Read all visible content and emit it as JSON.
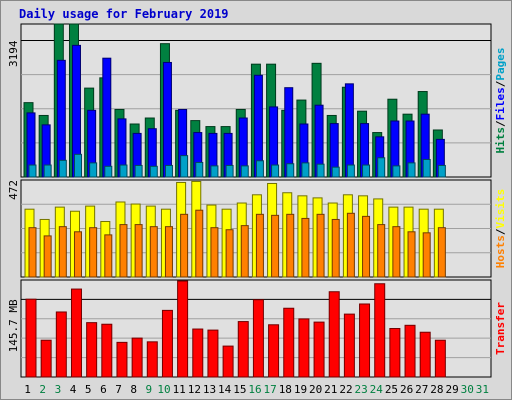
{
  "title": "Daily usage for February 2019",
  "chart_data": [
    {
      "type": "bar",
      "panel": "hits-files-pages",
      "right_label_parts": [
        {
          "text": "Hits",
          "color": "#008040"
        },
        {
          "text": "/",
          "color": "#000000"
        },
        {
          "text": "Files",
          "color": "#0000ff"
        },
        {
          "text": "/",
          "color": "#000000"
        },
        {
          "text": "Pages",
          "color": "#00a0c8"
        }
      ],
      "y_tick_label": "3194",
      "y_tick_value": 3194,
      "ylim": [
        0,
        3580
      ],
      "categories": [
        "1",
        "2",
        "3",
        "4",
        "5",
        "6",
        "7",
        "8",
        "9",
        "10",
        "11",
        "12",
        "13",
        "14",
        "15",
        "16",
        "17",
        "18",
        "19",
        "20",
        "21",
        "22",
        "23",
        "24",
        "25",
        "26",
        "27",
        "28",
        "29",
        "30",
        "31"
      ],
      "series": [
        {
          "name": "Hits",
          "color": "#008040",
          "values": [
            1740,
            1440,
            3580,
            3580,
            2080,
            2320,
            1580,
            1240,
            1380,
            3120,
            1560,
            1320,
            1180,
            1180,
            1580,
            2640,
            2640,
            1560,
            1800,
            2660,
            1440,
            2100,
            1540,
            1040,
            1820,
            1470,
            2000,
            1100,
            null,
            null,
            null
          ]
        },
        {
          "name": "Files",
          "color": "#0000ff",
          "values": [
            1500,
            1220,
            2730,
            3080,
            1560,
            2780,
            1360,
            1020,
            1130,
            2680,
            1580,
            1040,
            1020,
            1020,
            1380,
            2380,
            1640,
            2090,
            1240,
            1680,
            1250,
            2180,
            1250,
            940,
            1310,
            1310,
            1470,
            880,
            null,
            null,
            null
          ]
        },
        {
          "name": "Pages",
          "color": "#00a0c8",
          "values": [
            280,
            280,
            390,
            530,
            330,
            250,
            280,
            270,
            250,
            270,
            500,
            340,
            260,
            270,
            260,
            380,
            280,
            310,
            330,
            300,
            230,
            280,
            280,
            450,
            260,
            330,
            410,
            270,
            null,
            null,
            null
          ]
        }
      ]
    },
    {
      "type": "bar",
      "panel": "visits-hosts",
      "right_label_parts": [
        {
          "text": "Hosts",
          "color": "#ff8000"
        },
        {
          "text": "/",
          "color": "#000000"
        },
        {
          "text": "Visits",
          "color": "#ffff00"
        }
      ],
      "y_tick_label": "472",
      "y_tick_value": 472,
      "ylim": [
        0,
        472
      ],
      "categories": [
        "1",
        "2",
        "3",
        "4",
        "5",
        "6",
        "7",
        "8",
        "9",
        "10",
        "11",
        "12",
        "13",
        "14",
        "15",
        "16",
        "17",
        "18",
        "19",
        "20",
        "21",
        "22",
        "23",
        "24",
        "25",
        "26",
        "27",
        "28",
        "29",
        "30",
        "31"
      ],
      "series": [
        {
          "name": "Visits",
          "color": "#ffff00",
          "values": [
            330,
            280,
            340,
            320,
            345,
            270,
            365,
            355,
            345,
            330,
            460,
            465,
            350,
            330,
            360,
            400,
            455,
            410,
            395,
            385,
            360,
            400,
            395,
            380,
            340,
            340,
            330,
            330,
            null,
            null,
            null
          ]
        },
        {
          "name": "Hosts",
          "color": "#ff8000",
          "values": [
            240,
            200,
            245,
            220,
            240,
            205,
            255,
            255,
            245,
            245,
            305,
            325,
            240,
            230,
            250,
            305,
            300,
            305,
            285,
            305,
            280,
            310,
            295,
            255,
            245,
            220,
            215,
            240,
            null,
            null,
            null
          ]
        }
      ]
    },
    {
      "type": "bar",
      "panel": "transfer",
      "right_label_parts": [
        {
          "text": "Transfer",
          "color": "#ff0000"
        }
      ],
      "y_tick_label": "145.7 MB",
      "y_tick_value": 145.7,
      "ylim": [
        0,
        182
      ],
      "categories": [
        "1",
        "2",
        "3",
        "4",
        "5",
        "6",
        "7",
        "8",
        "9",
        "10",
        "11",
        "12",
        "13",
        "14",
        "15",
        "16",
        "17",
        "18",
        "19",
        "20",
        "21",
        "22",
        "23",
        "24",
        "25",
        "26",
        "27",
        "28",
        "29",
        "30",
        "31"
      ],
      "series": [
        {
          "name": "Transfer",
          "color": "#ff0000",
          "values": [
            146,
            69,
            122,
            165,
            102,
            99,
            65,
            73,
            66,
            125,
            180,
            90,
            88,
            58,
            104,
            145,
            98,
            129,
            109,
            103,
            160,
            118,
            137,
            175,
            91,
            97,
            84,
            69,
            null,
            null,
            null
          ]
        }
      ]
    }
  ],
  "x_labels": [
    {
      "text": "1",
      "color": "#000000"
    },
    {
      "text": "2",
      "color": "#008040"
    },
    {
      "text": "3",
      "color": "#008040"
    },
    {
      "text": "4",
      "color": "#000000"
    },
    {
      "text": "5",
      "color": "#000000"
    },
    {
      "text": "6",
      "color": "#000000"
    },
    {
      "text": "7",
      "color": "#000000"
    },
    {
      "text": "8",
      "color": "#000000"
    },
    {
      "text": "9",
      "color": "#008040"
    },
    {
      "text": "10",
      "color": "#008040"
    },
    {
      "text": "11",
      "color": "#000000"
    },
    {
      "text": "12",
      "color": "#000000"
    },
    {
      "text": "13",
      "color": "#000000"
    },
    {
      "text": "14",
      "color": "#000000"
    },
    {
      "text": "15",
      "color": "#000000"
    },
    {
      "text": "16",
      "color": "#008040"
    },
    {
      "text": "17",
      "color": "#008040"
    },
    {
      "text": "18",
      "color": "#000000"
    },
    {
      "text": "19",
      "color": "#000000"
    },
    {
      "text": "20",
      "color": "#000000"
    },
    {
      "text": "21",
      "color": "#000000"
    },
    {
      "text": "22",
      "color": "#000000"
    },
    {
      "text": "23",
      "color": "#008040"
    },
    {
      "text": "24",
      "color": "#008040"
    },
    {
      "text": "25",
      "color": "#000000"
    },
    {
      "text": "26",
      "color": "#000000"
    },
    {
      "text": "27",
      "color": "#000000"
    },
    {
      "text": "28",
      "color": "#000000"
    },
    {
      "text": "29",
      "color": "#000000"
    },
    {
      "text": "30",
      "color": "#008040"
    },
    {
      "text": "31",
      "color": "#008040"
    }
  ],
  "colors": {
    "background": "#d9d9d9",
    "panel_bg": "#e0e0e0",
    "title": "#0000cc"
  }
}
